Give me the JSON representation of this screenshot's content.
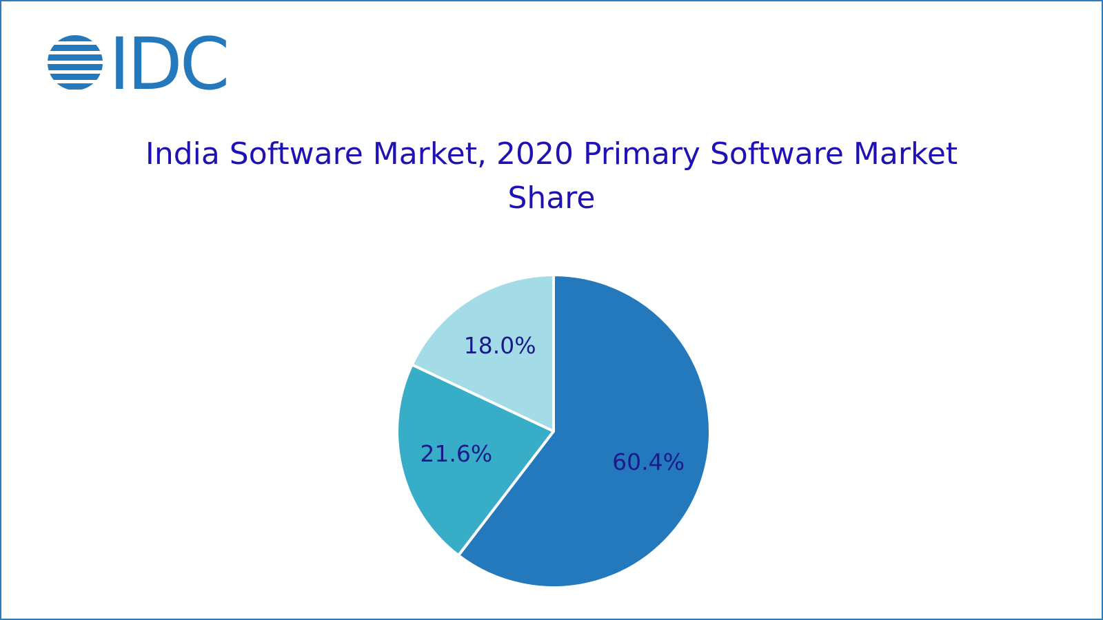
{
  "logo": "IDC",
  "chart_data": {
    "type": "pie",
    "title": "India Software Market, 2020 Primary Software Market Share",
    "values": [
      60.4,
      21.6,
      18.0
    ],
    "value_labels": [
      "60.4%",
      "21.6%",
      "18.0%"
    ],
    "colors": [
      "#2479bd",
      "#37adc8",
      "#a3dbe6"
    ]
  }
}
